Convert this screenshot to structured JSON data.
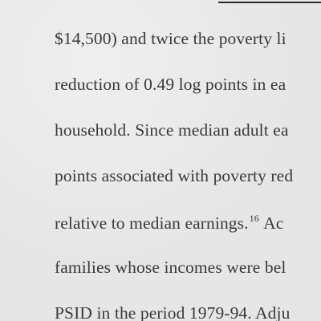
{
  "document": {
    "lines": [
      "$14,500) and twice the poverty li",
      "reduction of 0.49 log points in ea",
      "household. Since median adult ea",
      "points associated with poverty red",
      "relative to median earnings.",
      "families whose incomes were bel",
      "PSID in the period 1979-94. Adju"
    ],
    "footnote_marker": "16",
    "line5_tail": " Ac"
  }
}
